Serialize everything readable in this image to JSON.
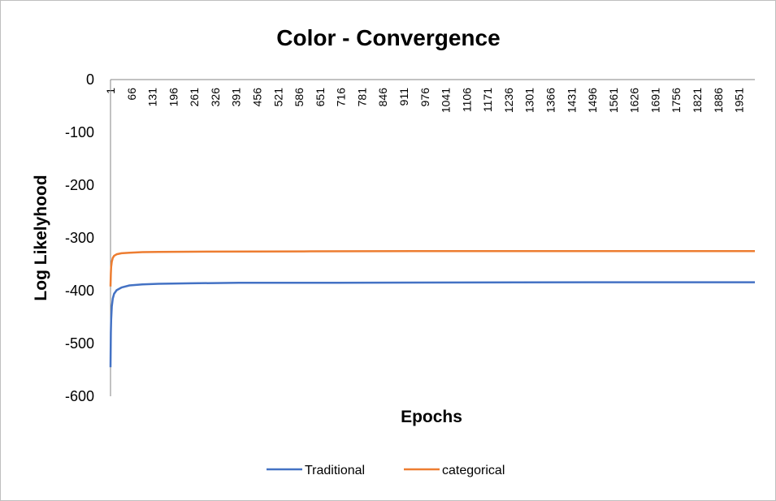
{
  "chart_data": {
    "type": "line",
    "title": "Color - Convergence",
    "xlabel": "Epochs",
    "ylabel": "Log Likelyhood",
    "ylim": [
      -600,
      0
    ],
    "yticks": [
      "0",
      "-100",
      "-200",
      "-300",
      "-400",
      "-500",
      "-600"
    ],
    "ytick_values": [
      0,
      -100,
      -200,
      -300,
      -400,
      -500,
      -600
    ],
    "x_range": [
      1,
      2000
    ],
    "xtick_labels": [
      "1",
      "66",
      "131",
      "196",
      "261",
      "326",
      "391",
      "456",
      "521",
      "586",
      "651",
      "716",
      "781",
      "846",
      "911",
      "976",
      "1041",
      "1106",
      "1171",
      "1236",
      "1301",
      "1366",
      "1431",
      "1496",
      "1561",
      "1626",
      "1691",
      "1756",
      "1821",
      "1886",
      "1951"
    ],
    "grid": false,
    "legend_position": "bottom",
    "series": [
      {
        "name": "Traditional",
        "color": "#4472c4",
        "points": [
          [
            1,
            -545
          ],
          [
            2,
            -480
          ],
          [
            3,
            -455
          ],
          [
            5,
            -430
          ],
          [
            8,
            -415
          ],
          [
            12,
            -406
          ],
          [
            20,
            -399
          ],
          [
            35,
            -394
          ],
          [
            60,
            -390
          ],
          [
            100,
            -388
          ],
          [
            150,
            -387
          ],
          [
            250,
            -386
          ],
          [
            400,
            -385
          ],
          [
            700,
            -385
          ],
          [
            1100,
            -384.5
          ],
          [
            1500,
            -384
          ],
          [
            2000,
            -384
          ]
        ]
      },
      {
        "name": "categorical",
        "color": "#ed7d31",
        "points": [
          [
            1,
            -392
          ],
          [
            2,
            -368
          ],
          [
            3,
            -355
          ],
          [
            5,
            -345
          ],
          [
            8,
            -338
          ],
          [
            12,
            -334
          ],
          [
            20,
            -331
          ],
          [
            35,
            -329
          ],
          [
            60,
            -328
          ],
          [
            100,
            -327
          ],
          [
            150,
            -326.5
          ],
          [
            300,
            -326
          ],
          [
            600,
            -325.5
          ],
          [
            1000,
            -325
          ],
          [
            1500,
            -325
          ],
          [
            2000,
            -325
          ]
        ]
      }
    ]
  }
}
